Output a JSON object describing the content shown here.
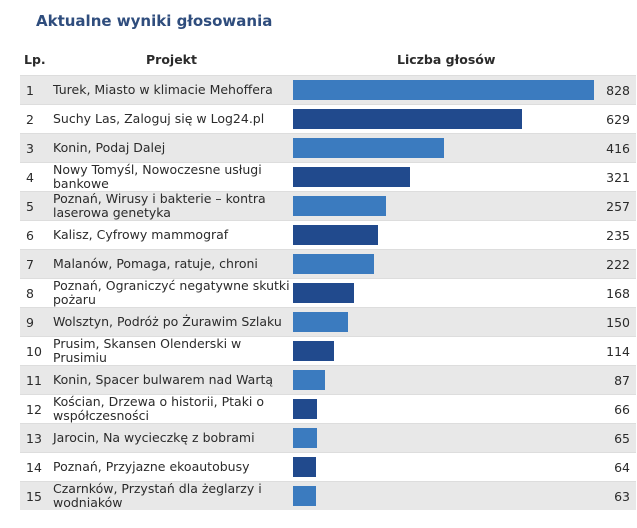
{
  "title": "Aktualne wyniki głosowania",
  "headers": {
    "lp": "Lp.",
    "project": "Projekt",
    "votes": "Liczba głosów"
  },
  "colors": {
    "bar_light": "#3b7bbf",
    "bar_dark": "#214a8d",
    "title": "#2f4d7d"
  },
  "chart_data": {
    "type": "bar",
    "categories": [
      "Turek, Miasto w klimacie Mehoffera",
      "Suchy Las, Zaloguj się w Log24.pl",
      "Konin, Podaj Dalej",
      "Nowy Tomyśl, Nowoczesne usługi bankowe",
      "Poznań, Wirusy i bakterie – kontra laserowa genetyka",
      "Kalisz, Cyfrowy mammograf",
      "Malanów, Pomaga, ratuje, chroni",
      "Poznań, Ograniczyć negatywne skutki pożaru",
      "Wolsztyn, Podróż po Żurawim Szlaku",
      "Prusim, Skansen Olenderski w Prusimiu",
      "Konin, Spacer bulwarem nad Wartą",
      "Kościan, Drzewa o historii, Ptaki o współczesności",
      "Jarocin, Na wycieczkę z bobrami",
      "Poznań, Przyjazne ekoautobusy",
      "Czarnków, Przystań dla żeglarzy i wodniaków"
    ],
    "values": [
      828,
      629,
      416,
      321,
      257,
      235,
      222,
      168,
      150,
      114,
      87,
      66,
      65,
      64,
      63
    ]
  },
  "rows": [
    {
      "lp": "1",
      "project": "Turek, Miasto w klimacie Mehoffera",
      "votes": "828"
    },
    {
      "lp": "2",
      "project": "Suchy Las, Zaloguj się w Log24.pl",
      "votes": "629"
    },
    {
      "lp": "3",
      "project": "Konin, Podaj Dalej",
      "votes": "416"
    },
    {
      "lp": "4",
      "project": "Nowy Tomyśl, Nowoczesne usługi bankowe",
      "votes": "321"
    },
    {
      "lp": "5",
      "project": "Poznań, Wirusy i bakterie – kontra laserowa genetyka",
      "votes": "257"
    },
    {
      "lp": "6",
      "project": "Kalisz, Cyfrowy mammograf",
      "votes": "235"
    },
    {
      "lp": "7",
      "project": "Malanów, Pomaga, ratuje, chroni",
      "votes": "222"
    },
    {
      "lp": "8",
      "project": "Poznań, Ograniczyć negatywne skutki pożaru",
      "votes": "168"
    },
    {
      "lp": "9",
      "project": "Wolsztyn, Podróż po Żurawim Szlaku",
      "votes": "150"
    },
    {
      "lp": "10",
      "project": "Prusim, Skansen Olenderski w Prusimiu",
      "votes": "114"
    },
    {
      "lp": "11",
      "project": "Konin, Spacer bulwarem nad Wartą",
      "votes": "87"
    },
    {
      "lp": "12",
      "project": "Kościan, Drzewa o historii, Ptaki o współczesności",
      "votes": "66"
    },
    {
      "lp": "13",
      "project": "Jarocin, Na wycieczkę z bobrami",
      "votes": "65"
    },
    {
      "lp": "14",
      "project": "Poznań, Przyjazne ekoautobusy",
      "votes": "64"
    },
    {
      "lp": "15",
      "project": "Czarnków, Przystań dla żeglarzy i wodniaków",
      "votes": "63"
    }
  ]
}
